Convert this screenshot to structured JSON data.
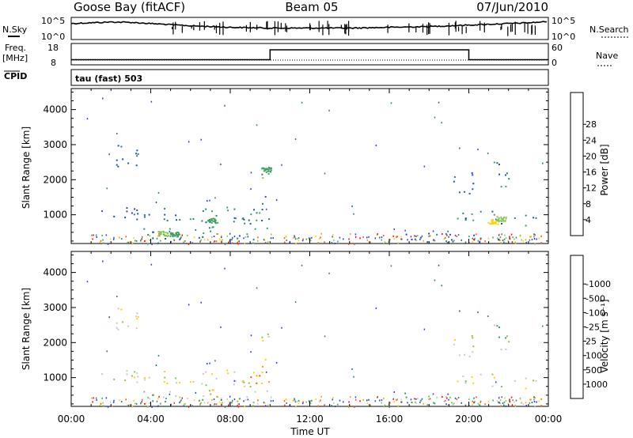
{
  "header": {
    "station": "Goose Bay (fitACF)",
    "beam": "Beam 05",
    "date": "07/Jun/2010"
  },
  "strip_labels": {
    "nsky": "N.Sky",
    "nsearch": "N.Search",
    "freq": "Freq.",
    "freq_unit": "[MHz]",
    "nave": "Nave",
    "cpid": "CPID",
    "cpid_value": "tau (fast) 503"
  },
  "chart_data": [
    {
      "type": "line",
      "panel": "noise",
      "left_axis": {
        "label": "N.Sky",
        "ticks": [
          "10^5",
          "10^0"
        ],
        "log": true
      },
      "right_axis": {
        "label": "N.Search",
        "ticks": [
          "10^5",
          "10^0"
        ],
        "log": true
      },
      "series": [
        {
          "name": "N.Sky",
          "x": [
            0,
            1,
            2,
            3,
            4,
            5,
            6,
            7,
            8,
            9,
            10,
            11,
            12,
            13,
            14,
            15,
            16,
            17,
            18,
            19,
            20,
            21,
            22,
            23,
            24
          ],
          "values": [
            3.8,
            4.0,
            4.2,
            4.1,
            3.8,
            3.5,
            3.2,
            3.0,
            2.8,
            2.7,
            2.6,
            2.6,
            2.6,
            2.6,
            2.6,
            2.7,
            2.8,
            2.9,
            3.0,
            3.2,
            3.4,
            3.6,
            3.8,
            4.0,
            4.3
          ]
        }
      ]
    },
    {
      "type": "line",
      "panel": "frequency",
      "left_axis": {
        "label": "Freq. [MHz]",
        "ticks": [
          18,
          8
        ]
      },
      "right_axis": {
        "label": "Nave",
        "ticks": [
          60,
          0
        ]
      },
      "series": [
        {
          "name": "Freq.",
          "x": [
            0,
            10,
            10,
            20,
            20,
            24
          ],
          "values": [
            10.3,
            10.3,
            15.5,
            15.5,
            10.3,
            10.3
          ]
        }
      ]
    },
    {
      "type": "heatmap",
      "panel": "power",
      "xlabel": "",
      "ylabel": "Slant Range [km]",
      "yticks": [
        1000,
        2000,
        3000,
        4000
      ],
      "xlim": [
        0,
        24
      ],
      "ylim": [
        180,
        4600
      ],
      "colorbar": {
        "label": "Power [dB]",
        "ticks": [
          "4",
          "8",
          "12",
          "16",
          "20",
          "24",
          "28"
        ],
        "colors": [
          "#1f3bff",
          "#1f56a8",
          "#2f7e7e",
          "#3f9f5f",
          "#88c64f",
          "#ffd200",
          "#ff9a00",
          "#ff4f00",
          "#ff0000"
        ]
      },
      "regions": [
        {
          "t": [
            2.0,
            3.7
          ],
          "r": [
            2350,
            3050
          ],
          "level": 1
        },
        {
          "t": [
            1.2,
            5.5
          ],
          "r": [
            850,
            1250
          ],
          "level": 1
        },
        {
          "t": [
            3.6,
            10.0
          ],
          "r": [
            300,
            650
          ],
          "level": 2
        },
        {
          "t": [
            5.5,
            9.0
          ],
          "r": [
            650,
            1250
          ],
          "level": 2
        },
        {
          "t": [
            9.0,
            10.0
          ],
          "r": [
            850,
            1700
          ],
          "level": 2
        },
        {
          "t": [
            9.5,
            9.9
          ],
          "r": [
            2050,
            2800
          ],
          "level": 3
        },
        {
          "t": [
            16.8,
            22.8
          ],
          "r": [
            180,
            500
          ],
          "level": 1
        },
        {
          "t": [
            19.0,
            23.5
          ],
          "r": [
            650,
            1150
          ],
          "level": 2
        },
        {
          "t": [
            19.1,
            20.6
          ],
          "r": [
            1600,
            2300
          ],
          "level": 1
        },
        {
          "t": [
            21.1,
            22.2
          ],
          "r": [
            1800,
            2600
          ],
          "level": 2
        }
      ],
      "hotspots": [
        {
          "t": 4.6,
          "r": 480,
          "level": 4
        },
        {
          "t": 5.2,
          "r": 450,
          "level": 3
        },
        {
          "t": 7.1,
          "r": 850,
          "level": 3
        },
        {
          "t": 9.8,
          "r": 2300,
          "level": 3
        },
        {
          "t": 21.2,
          "r": 820,
          "level": 5
        },
        {
          "t": 21.6,
          "r": 900,
          "level": 4
        }
      ]
    },
    {
      "type": "heatmap",
      "panel": "velocity",
      "xlabel": "Time UT",
      "ylabel": "Slant Range [km]",
      "xticks": [
        "00:00",
        "04:00",
        "08:00",
        "12:00",
        "16:00",
        "20:00",
        "00:00"
      ],
      "yticks": [
        1000,
        2000,
        3000,
        4000
      ],
      "xlim": [
        0,
        24
      ],
      "ylim": [
        180,
        4600
      ],
      "colorbar": {
        "label": "Velocity [m s⁻¹]",
        "ticks": [
          "1000",
          "500",
          "100",
          "25",
          "-25",
          "-100",
          "-500",
          "-1000"
        ],
        "colors": [
          "#1f3bff",
          "#1f56a8",
          "#2f7e7e",
          "#3f9f5f",
          "#88c64f",
          "#c8c8c8",
          "#ffd200",
          "#ff9a00",
          "#ff4f00",
          "#ff0000"
        ]
      },
      "regions": [
        {
          "t": [
            2.0,
            3.7
          ],
          "r": [
            2350,
            3050
          ],
          "level": 5
        },
        {
          "t": [
            1.2,
            5.5
          ],
          "r": [
            850,
            1250
          ],
          "level": 5
        },
        {
          "t": [
            3.6,
            10.0
          ],
          "r": [
            300,
            650
          ],
          "level": 4
        },
        {
          "t": [
            5.5,
            9.0
          ],
          "r": [
            650,
            1250
          ],
          "level": 5
        },
        {
          "t": [
            9.0,
            10.0
          ],
          "r": [
            850,
            1700
          ],
          "level": 7
        },
        {
          "t": [
            9.5,
            9.9
          ],
          "r": [
            2050,
            2800
          ],
          "level": 5
        },
        {
          "t": [
            16.8,
            22.8
          ],
          "r": [
            180,
            500
          ],
          "level": 4
        },
        {
          "t": [
            19.0,
            23.5
          ],
          "r": [
            650,
            1150
          ],
          "level": 5
        },
        {
          "t": [
            19.1,
            20.6
          ],
          "r": [
            1600,
            2300
          ],
          "level": 5
        },
        {
          "t": [
            21.1,
            22.2
          ],
          "r": [
            1800,
            2600
          ],
          "level": 4
        }
      ]
    }
  ]
}
